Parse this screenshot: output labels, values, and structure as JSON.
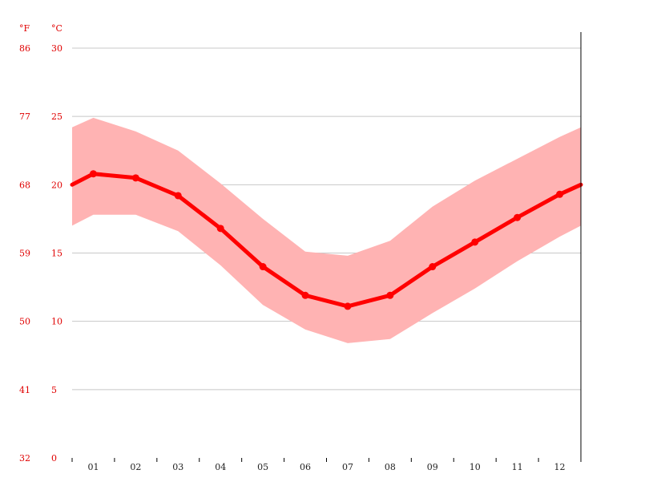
{
  "chart_data": {
    "type": "line",
    "title": "",
    "xlabel": "",
    "ylabel": "",
    "units": {
      "fahrenheit": "°F",
      "celsius": "°C"
    },
    "categories": [
      "01",
      "02",
      "03",
      "04",
      "05",
      "06",
      "07",
      "08",
      "09",
      "10",
      "11",
      "12"
    ],
    "y_ticks_celsius": [
      "30",
      "25",
      "20",
      "15",
      "10",
      "5",
      "0"
    ],
    "y_ticks_fahrenheit": [
      "86",
      "77",
      "68",
      "59",
      "50",
      "41",
      "32"
    ],
    "ylim": [
      0,
      30
    ],
    "grid": true,
    "series": [
      {
        "role": "average",
        "values": [
          20.8,
          20.5,
          19.2,
          16.8,
          14.0,
          11.9,
          11.1,
          11.9,
          14.0,
          15.8,
          17.6,
          19.3
        ],
        "wrap_value": 20.0,
        "color": "#ff0000"
      },
      {
        "role": "range-band",
        "max": [
          24.9,
          23.9,
          22.5,
          20.1,
          17.5,
          15.1,
          14.8,
          15.9,
          18.4,
          20.3,
          21.9,
          23.5
        ],
        "min": [
          17.8,
          17.8,
          16.6,
          14.1,
          11.2,
          9.4,
          8.4,
          8.7,
          10.6,
          12.4,
          14.4,
          16.2
        ],
        "wrap_max": 24.2,
        "wrap_min": 17.0,
        "color": "#ffb3b3"
      }
    ]
  }
}
